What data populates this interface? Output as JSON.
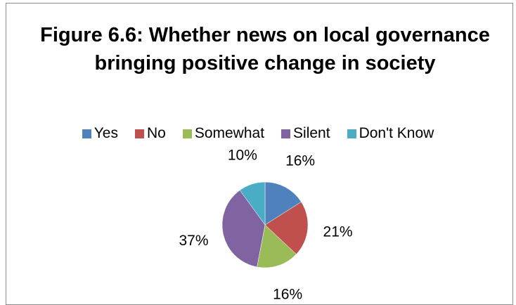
{
  "chart_data": {
    "type": "pie",
    "title": "Figure 6.6: Whether news on local governance bringing positive change in society",
    "categories": [
      "Yes",
      "No",
      "Somewhat",
      "Silent",
      "Don't Know"
    ],
    "values": [
      16,
      21,
      16,
      37,
      10
    ],
    "labels": [
      "16%",
      "21%",
      "16%",
      "37%",
      "10%"
    ],
    "colors": [
      "#4f81bd",
      "#c0504d",
      "#9bbb59",
      "#8064a2",
      "#4bacc6"
    ],
    "legend_position": "top"
  }
}
